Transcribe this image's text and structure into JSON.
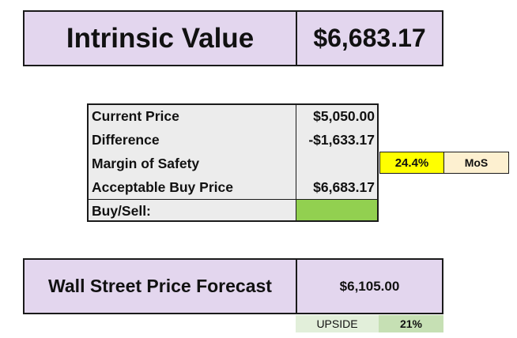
{
  "intrinsic": {
    "label": "Intrinsic Value",
    "value": "$6,683.17"
  },
  "table": {
    "rows": [
      {
        "label": "Current Price",
        "value": "$5,050.00"
      },
      {
        "label": "Difference",
        "value": "-$1,633.17"
      },
      {
        "label": "Margin of Safety",
        "value": ""
      },
      {
        "label": "Acceptable Buy Price",
        "value": "$6,683.17"
      },
      {
        "label": "Buy/Sell:",
        "value": ""
      }
    ],
    "buy_sell_color": "#92d050"
  },
  "margin_of_safety": {
    "percent": "24.4%",
    "tag": "MoS",
    "percent_color": "#ffff00",
    "tag_color": "#fdf0d0"
  },
  "forecast": {
    "label": "Wall Street Price Forecast",
    "value": "$6,105.00"
  },
  "upside": {
    "label": "UPSIDE",
    "percent": "21%"
  },
  "colors": {
    "header_fill": "#e3d6ee",
    "table_fill": "#ececec",
    "upside_label_fill": "#e2efda",
    "upside_pct_fill": "#c6e0b4"
  }
}
